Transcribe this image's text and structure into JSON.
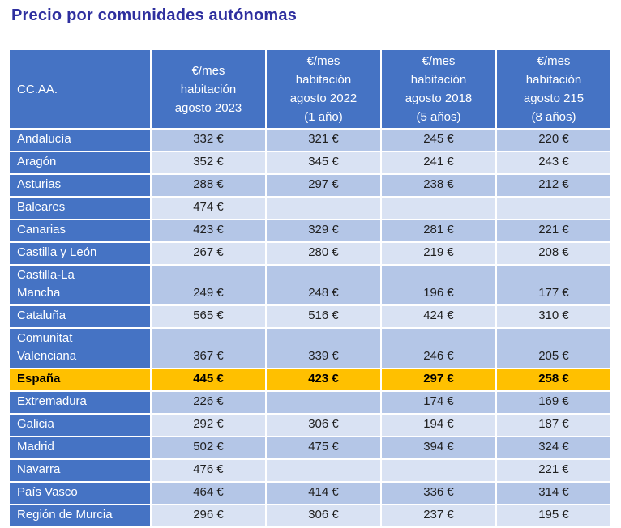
{
  "title": "Precio por comunidades autónomas",
  "colors": {
    "header-bg": "#4573C4",
    "band-dark": "#B4C6E7",
    "band-light": "#D9E2F3",
    "highlight-bg": "#FFC000",
    "title-color": "#2E2F9F",
    "header-text": "#FFFFFF",
    "cell-text": "#1F1F1F",
    "page-bg": "#FFFFFF"
  },
  "chart_data": {
    "type": "table",
    "title": "Precio por comunidades autónomas",
    "unit": "€",
    "columns": [
      {
        "id": "ccaa",
        "label": "CC.AA."
      },
      {
        "id": "agosto-2023",
        "label": "€/mes\nhabitación\nagosto 2023"
      },
      {
        "id": "agosto-2022",
        "label": "€/mes\nhabitación\nagosto 2022\n(1 año)"
      },
      {
        "id": "agosto-2018",
        "label": "€/mes\nhabitación\nagosto 2018\n(5 años)"
      },
      {
        "id": "agosto-215",
        "label": "€/mes\nhabitación\nagosto 215\n(8 años)"
      }
    ],
    "rows": [
      {
        "name": "Andalucía",
        "values": [
          332,
          321,
          245,
          220
        ]
      },
      {
        "name": "Aragón",
        "values": [
          352,
          345,
          241,
          243
        ]
      },
      {
        "name": "Asturias",
        "values": [
          288,
          297,
          238,
          212
        ]
      },
      {
        "name": "Baleares",
        "values": [
          474,
          null,
          null,
          null
        ]
      },
      {
        "name": "Canarias",
        "values": [
          423,
          329,
          281,
          221
        ]
      },
      {
        "name": "Castilla y León",
        "values": [
          267,
          280,
          219,
          208
        ]
      },
      {
        "name": "Castilla-La\nMancha",
        "values": [
          249,
          248,
          196,
          177
        ]
      },
      {
        "name": "Cataluña",
        "values": [
          565,
          516,
          424,
          310
        ]
      },
      {
        "name": "Comunitat\nValenciana",
        "values": [
          367,
          339,
          246,
          205
        ]
      },
      {
        "name": "España",
        "values": [
          445,
          423,
          297,
          258
        ],
        "highlight": true
      },
      {
        "name": "Extremadura",
        "values": [
          226,
          null,
          174,
          169
        ]
      },
      {
        "name": "Galicia",
        "values": [
          292,
          306,
          194,
          187
        ]
      },
      {
        "name": "Madrid",
        "values": [
          502,
          475,
          394,
          324
        ]
      },
      {
        "name": "Navarra",
        "values": [
          476,
          null,
          null,
          221
        ]
      },
      {
        "name": "País Vasco",
        "values": [
          464,
          414,
          336,
          314
        ]
      },
      {
        "name": "Región de Murcia",
        "values": [
          296,
          306,
          237,
          195
        ]
      }
    ]
  }
}
